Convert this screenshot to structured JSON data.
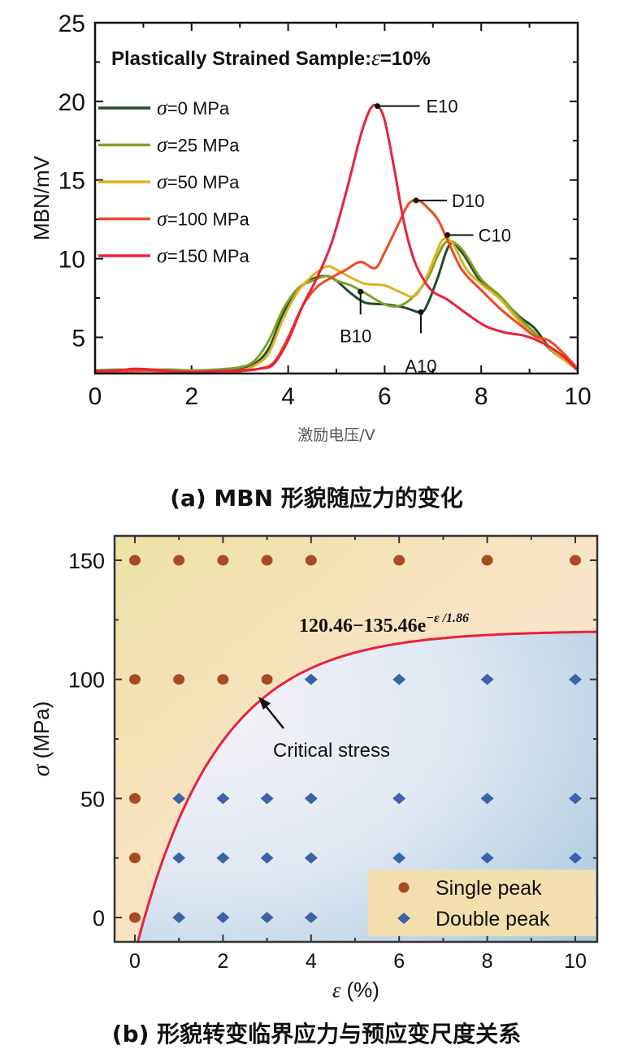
{
  "chart_data": [
    {
      "id": "a",
      "type": "line",
      "title": "Plastically Strained Sample:ε =10%",
      "title_parts": {
        "text": "Plastically Strained Sample:",
        "symbol": "ε",
        "value": "=10%"
      },
      "xlabel": "激励电压/V",
      "ylabel": "MBN/mV",
      "xlim": [
        0,
        10
      ],
      "ylim": [
        2.7,
        25
      ],
      "xticks": [
        0,
        2,
        4,
        6,
        8,
        10
      ],
      "yticks": [
        5,
        10,
        15,
        20,
        25
      ],
      "legend_position": "top-left",
      "series": [
        {
          "name": "σ=0 MPa",
          "symbol": "σ",
          "label": "=0 MPa",
          "color": "#1f4d2b",
          "x": [
            0,
            0.5,
            1,
            1.5,
            2,
            2.5,
            3,
            3.3,
            3.6,
            3.9,
            4.2,
            4.5,
            4.8,
            5.0,
            5.3,
            5.6,
            6.0,
            6.4,
            6.75,
            6.9,
            7.1,
            7.35,
            7.6,
            8.0,
            8.4,
            8.8,
            9.1,
            9.4,
            9.7,
            10
          ],
          "y": [
            2.9,
            2.9,
            2.9,
            2.85,
            2.8,
            2.85,
            3.0,
            3.3,
            4.3,
            6.5,
            8.0,
            8.7,
            8.9,
            8.6,
            7.8,
            7.2,
            7.1,
            6.9,
            6.6,
            7.2,
            8.8,
            10.9,
            10.4,
            8.5,
            7.5,
            6.3,
            5.6,
            4.4,
            3.7,
            3.0
          ]
        },
        {
          "name": "σ=25 MPa",
          "symbol": "σ",
          "label": "=25 MPa",
          "color": "#7fa02a",
          "x": [
            0,
            0.5,
            1,
            1.5,
            2,
            2.5,
            3,
            3.3,
            3.6,
            3.9,
            4.2,
            4.5,
            4.8,
            5.0,
            5.3,
            5.6,
            6.0,
            6.3,
            6.6,
            6.9,
            7.1,
            7.3,
            7.6,
            8.0,
            8.4,
            8.8,
            9.1,
            9.4,
            9.7,
            10
          ],
          "y": [
            2.9,
            2.95,
            2.9,
            2.95,
            2.9,
            2.95,
            3.1,
            3.5,
            4.8,
            6.8,
            8.1,
            8.6,
            8.9,
            8.6,
            8.3,
            7.8,
            7.1,
            7.0,
            7.6,
            8.8,
            10.2,
            11.1,
            10.6,
            8.7,
            7.6,
            6.2,
            5.3,
            4.3,
            3.6,
            3.0
          ]
        },
        {
          "name": "σ=50 MPa",
          "symbol": "σ",
          "label": "=50 MPa",
          "color": "#e0b020",
          "x": [
            0,
            0.5,
            1,
            1.5,
            2,
            2.5,
            3,
            3.3,
            3.6,
            3.9,
            4.2,
            4.5,
            4.8,
            5.0,
            5.3,
            5.6,
            6.0,
            6.3,
            6.6,
            6.8,
            7.0,
            7.2,
            7.4,
            7.7,
            8.0,
            8.4,
            8.8,
            9.1,
            9.4,
            9.7,
            10
          ],
          "y": [
            2.8,
            2.8,
            2.8,
            2.75,
            2.75,
            2.8,
            2.9,
            3.2,
            4.0,
            6.2,
            7.9,
            8.9,
            9.5,
            9.3,
            8.8,
            8.4,
            8.3,
            7.9,
            7.6,
            8.4,
            9.8,
            11.2,
            11.0,
            9.3,
            8.4,
            7.4,
            6.0,
            5.1,
            4.4,
            3.6,
            2.9
          ]
        },
        {
          "name": "σ=100 MPa",
          "symbol": "σ",
          "label": "=100 MPa",
          "color": "#f04a23",
          "x": [
            0,
            0.5,
            1,
            1.5,
            2,
            2.5,
            3,
            3.4,
            3.7,
            4.0,
            4.3,
            4.6,
            4.9,
            5.2,
            5.5,
            5.8,
            6.0,
            6.3,
            6.5,
            6.7,
            6.9,
            7.1,
            7.3,
            7.6,
            8.0,
            8.4,
            8.8,
            9.1,
            9.4,
            9.7,
            10
          ],
          "y": [
            2.8,
            2.75,
            2.9,
            2.8,
            2.75,
            2.8,
            2.85,
            3.0,
            3.4,
            5.0,
            7.0,
            8.2,
            8.8,
            9.3,
            9.8,
            9.4,
            10.4,
            12.3,
            13.5,
            13.7,
            13.2,
            12.5,
            11.2,
            9.3,
            8.0,
            6.8,
            5.8,
            5.1,
            4.8,
            4.0,
            3.0
          ]
        },
        {
          "name": "σ=150 MPa",
          "symbol": "σ",
          "label": "=150 MPa",
          "color": "#e8213e",
          "x": [
            0,
            0.5,
            0.8,
            1.2,
            1.6,
            2,
            2.5,
            3,
            3.4,
            3.7,
            4.0,
            4.3,
            4.6,
            4.9,
            5.2,
            5.5,
            5.7,
            5.85,
            6.0,
            6.2,
            6.4,
            6.6,
            6.8,
            7.0,
            7.3,
            7.7,
            8.1,
            8.5,
            8.9,
            9.3,
            9.7,
            10
          ],
          "y": [
            2.85,
            2.9,
            3.0,
            2.95,
            2.85,
            2.8,
            2.85,
            2.9,
            3.0,
            3.3,
            4.8,
            7.0,
            8.8,
            11.0,
            14.2,
            17.8,
            19.5,
            19.7,
            18.8,
            15.7,
            12.3,
            10.0,
            8.7,
            7.9,
            7.4,
            6.5,
            5.7,
            5.3,
            5.1,
            4.6,
            3.8,
            2.9
          ]
        }
      ],
      "annotations": [
        {
          "label": "E10",
          "x": 5.85,
          "y": 19.7
        },
        {
          "label": "D10",
          "x": 6.65,
          "y": 13.7
        },
        {
          "label": "C10",
          "x": 7.3,
          "y": 11.5
        },
        {
          "label": "B10",
          "x": 5.5,
          "y": 7.9
        },
        {
          "label": "A10",
          "x": 6.75,
          "y": 6.6
        }
      ],
      "caption": "(a) MBN 形貌随应力的变化"
    },
    {
      "id": "b",
      "type": "scatter",
      "xlabel": "ε (%)",
      "xlabel_parts": {
        "symbol": "ε",
        "unit": " (%)"
      },
      "ylabel": "σ (MPa)",
      "ylabel_parts": {
        "symbol": "σ",
        "unit": " (MPa)"
      },
      "xlim": [
        -0.45,
        10.5
      ],
      "ylim": [
        -10,
        160
      ],
      "xticks": [
        0,
        2,
        4,
        6,
        8,
        10
      ],
      "yticks": [
        0,
        50,
        100,
        150
      ],
      "legend_position": "bottom-right",
      "series": [
        {
          "name": "Single peak",
          "marker": "circle",
          "color": "#a84a22",
          "points": [
            [
              0,
              150
            ],
            [
              1,
              150
            ],
            [
              2,
              150
            ],
            [
              3,
              150
            ],
            [
              4,
              150
            ],
            [
              6,
              150
            ],
            [
              8,
              150
            ],
            [
              10,
              150
            ],
            [
              0,
              100
            ],
            [
              1,
              100
            ],
            [
              2,
              100
            ],
            [
              3,
              100
            ],
            [
              0,
              50
            ],
            [
              0,
              25
            ],
            [
              0,
              0
            ]
          ]
        },
        {
          "name": "Double peak",
          "marker": "diamond",
          "color": "#3b63a8",
          "points": [
            [
              4,
              100
            ],
            [
              6,
              100
            ],
            [
              8,
              100
            ],
            [
              10,
              100
            ],
            [
              1,
              50
            ],
            [
              2,
              50
            ],
            [
              3,
              50
            ],
            [
              4,
              50
            ],
            [
              6,
              50
            ],
            [
              8,
              50
            ],
            [
              10,
              50
            ],
            [
              1,
              25
            ],
            [
              2,
              25
            ],
            [
              3,
              25
            ],
            [
              4,
              25
            ],
            [
              6,
              25
            ],
            [
              8,
              25
            ],
            [
              10,
              25
            ],
            [
              1,
              0
            ],
            [
              2,
              0
            ],
            [
              3,
              0
            ],
            [
              4,
              0
            ]
          ]
        }
      ],
      "fit_curve": {
        "label": "120.46−135.46e",
        "exponent": "−ε /1.86",
        "a": 120.46,
        "b": 135.46,
        "tau": 1.86,
        "color": "#e8213e"
      },
      "critical_annotation": {
        "label": "Critical stress",
        "x": 2.9,
        "y": 91.5
      },
      "background": {
        "single_region_color": "#f3e3ac",
        "double_region_color": "#c7dbea"
      },
      "caption": "(b) 形貌转变临界应力与预应变尺度关系"
    }
  ]
}
